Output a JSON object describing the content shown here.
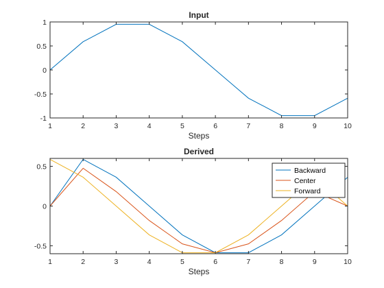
{
  "chart_data": [
    {
      "type": "line",
      "title": "Input",
      "xlabel": "Steps",
      "ylabel": "",
      "xlim": [
        1,
        10
      ],
      "ylim": [
        -1,
        1
      ],
      "xticks": [
        1,
        2,
        3,
        4,
        5,
        6,
        7,
        8,
        9,
        10
      ],
      "xtick_labels": [
        "1",
        "2",
        "3",
        "4",
        "5",
        "6",
        "7",
        "8",
        "9",
        "10"
      ],
      "yticks": [
        -1,
        -0.5,
        0,
        0.5,
        1
      ],
      "ytick_labels": [
        "-1",
        "-0.5",
        "0",
        "0.5",
        "1"
      ],
      "x": [
        1,
        2,
        3,
        4,
        5,
        6,
        7,
        8,
        9,
        10
      ],
      "series": [
        {
          "values": [
            0,
            0.588,
            0.951,
            0.951,
            0.588,
            0,
            -0.588,
            -0.951,
            -0.951,
            -0.588
          ],
          "color": "#0072BD"
        }
      ],
      "grid": false,
      "box": true
    },
    {
      "type": "line",
      "title": "Derived",
      "xlabel": "Steps",
      "ylabel": "",
      "xlim": [
        1,
        10
      ],
      "ylim": [
        -0.6,
        0.6
      ],
      "xticks": [
        1,
        2,
        3,
        4,
        5,
        6,
        7,
        8,
        9,
        10
      ],
      "xtick_labels": [
        "1",
        "2",
        "3",
        "4",
        "5",
        "6",
        "7",
        "8",
        "9",
        "10"
      ],
      "yticks": [
        -0.5,
        0,
        0.5
      ],
      "ytick_labels": [
        "-0.5",
        "0",
        "0.5"
      ],
      "x": [
        1,
        2,
        3,
        4,
        5,
        6,
        7,
        8,
        9,
        10
      ],
      "series": [
        {
          "name": "Backward",
          "values": [
            0,
            0.588,
            0.363,
            0,
            -0.363,
            -0.588,
            -0.588,
            -0.363,
            0,
            0.363
          ],
          "color": "#0072BD"
        },
        {
          "name": "Center",
          "values": [
            0,
            0.476,
            0.182,
            -0.182,
            -0.476,
            -0.588,
            -0.476,
            -0.182,
            0.182,
            0
          ],
          "color": "#D95319"
        },
        {
          "name": "Forward",
          "values": [
            0.588,
            0.363,
            0,
            -0.363,
            -0.588,
            -0.588,
            -0.363,
            0,
            0.363,
            0
          ],
          "color": "#EDB120"
        }
      ],
      "legend": "top-right",
      "grid": false,
      "box": true
    }
  ]
}
